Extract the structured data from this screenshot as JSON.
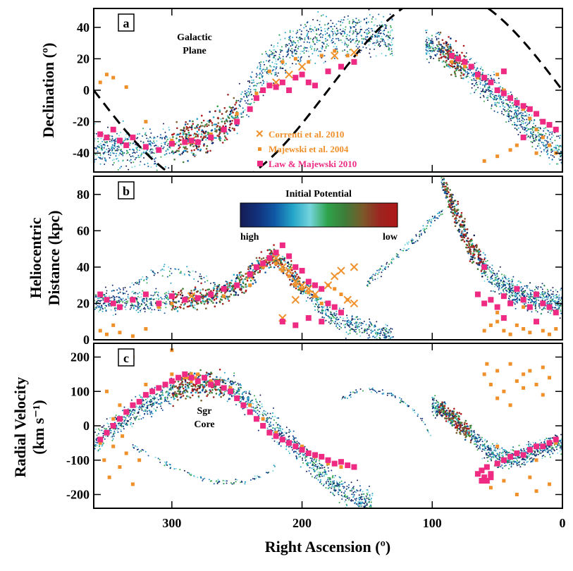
{
  "figure": {
    "xlabel": "Right Ascension (º)",
    "x_ticks": [
      "300",
      "200",
      "100",
      "0"
    ]
  },
  "chart_data": [
    {
      "id": "a",
      "type": "scatter",
      "panel_label": "a",
      "ylabel": "Declination (º)",
      "xlim": [
        360,
        0
      ],
      "ylim": [
        -52,
        52
      ],
      "y_ticks": [
        "40",
        "20",
        "0",
        "-20",
        "-40"
      ],
      "annotations": [
        "Galactic",
        "Plane"
      ],
      "legend": [
        "Correnti et al. 2010",
        "Majewski et al. 2004",
        "Law & Majewski 2010"
      ],
      "series": [
        {
          "name": "Correnti et al. 2010",
          "marker": "x",
          "color": "#f0902a",
          "x": [
            285,
            220,
            210,
            200,
            175,
            160
          ],
          "y": [
            -32,
            5,
            10,
            15,
            22,
            24
          ]
        },
        {
          "name": "Majewski et al. 2004",
          "marker": "dot",
          "color": "#f0902a",
          "x": [
            355,
            350,
            345,
            335,
            320,
            300,
            285,
            270,
            250,
            235,
            225,
            215,
            205,
            195,
            185,
            175,
            165,
            85,
            75,
            65,
            55,
            50,
            45,
            40,
            35,
            30,
            25,
            20,
            15,
            10,
            5,
            50,
            40,
            35,
            20,
            60
          ],
          "y": [
            5,
            10,
            8,
            2,
            -20,
            -32,
            -33,
            -28,
            -15,
            -2,
            12,
            18,
            20,
            18,
            22,
            25,
            22,
            18,
            15,
            8,
            5,
            10,
            0,
            -5,
            -8,
            -12,
            -18,
            -25,
            -30,
            -35,
            -40,
            -42,
            -38,
            -35,
            -40,
            -45
          ]
        },
        {
          "name": "Law & Majewski 2010",
          "marker": "square",
          "color": "#ee2a83",
          "x": [
            355,
            350,
            345,
            340,
            335,
            330,
            320,
            310,
            300,
            290,
            285,
            280,
            270,
            260,
            250,
            240,
            235,
            230,
            225,
            220,
            215,
            210,
            205,
            200,
            195,
            190,
            180,
            170,
            160,
            85,
            80,
            75,
            70,
            65,
            60,
            55,
            50,
            45,
            40,
            35,
            30,
            25,
            20,
            15,
            10,
            5,
            45,
            30
          ],
          "y": [
            -28,
            -30,
            -25,
            -32,
            -35,
            -30,
            -36,
            -38,
            -34,
            -33,
            -32,
            -33,
            -30,
            -25,
            -20,
            -12,
            -5,
            0,
            3,
            2,
            5,
            0,
            8,
            10,
            5,
            3,
            12,
            15,
            18,
            22,
            20,
            18,
            15,
            10,
            8,
            5,
            0,
            -2,
            -5,
            -8,
            -10,
            -12,
            -15,
            -20,
            -22,
            -25,
            12,
            -30
          ]
        }
      ]
    },
    {
      "id": "b",
      "type": "scatter",
      "panel_label": "b",
      "ylabel": [
        "Heliocentric",
        "Distance (kpc)"
      ],
      "xlim": [
        360,
        0
      ],
      "ylim": [
        0,
        90
      ],
      "y_ticks": [
        "80",
        "60",
        "40",
        "20",
        "0"
      ],
      "colorbar": {
        "title": "Initial Potential",
        "left": "high",
        "right": "low",
        "colors": [
          "#141c55",
          "#12317c",
          "#0f5aa6",
          "#24a4c8",
          "#74d4dc",
          "#2ea34a",
          "#3e7c3a",
          "#7a5a2a",
          "#9c2420",
          "#b01818"
        ]
      },
      "series": [
        {
          "name": "Correnti et al. 2010",
          "marker": "x",
          "color": "#f0902a",
          "x": [
            285,
            240,
            230,
            220,
            215,
            210,
            205,
            200,
            195,
            190,
            180,
            175,
            170,
            165,
            160,
            160,
            215,
            205
          ],
          "y": [
            24,
            35,
            42,
            45,
            40,
            38,
            32,
            30,
            28,
            25,
            30,
            35,
            38,
            22,
            40,
            20,
            12,
            22
          ]
        },
        {
          "name": "Majewski et al. 2004",
          "marker": "dot",
          "color": "#f0902a",
          "x": [
            355,
            350,
            345,
            340,
            330,
            320,
            310,
            300,
            290,
            260,
            240,
            230,
            225,
            220,
            215,
            210,
            205,
            200,
            195,
            190,
            185,
            180,
            175,
            170,
            165,
            60,
            55,
            50,
            45,
            40,
            35,
            30,
            25,
            20,
            15,
            10,
            5,
            50,
            30
          ],
          "y": [
            5,
            3,
            8,
            4,
            2,
            6,
            18,
            20,
            22,
            24,
            30,
            40,
            44,
            42,
            38,
            35,
            30,
            28,
            26,
            24,
            20,
            30,
            28,
            25,
            22,
            5,
            8,
            10,
            5,
            3,
            8,
            6,
            4,
            10,
            5,
            3,
            6,
            15,
            18
          ]
        },
        {
          "name": "Law & Majewski 2010",
          "marker": "square",
          "color": "#ee2a83",
          "x": [
            355,
            350,
            345,
            340,
            330,
            320,
            310,
            300,
            290,
            280,
            270,
            260,
            250,
            240,
            235,
            230,
            225,
            220,
            215,
            210,
            205,
            200,
            195,
            190,
            185,
            180,
            175,
            170,
            215,
            205,
            195,
            185,
            65,
            60,
            55,
            50,
            45,
            40,
            35,
            30,
            25,
            20,
            15,
            10,
            5,
            60,
            45,
            20
          ],
          "y": [
            25,
            22,
            20,
            18,
            22,
            25,
            20,
            24,
            22,
            23,
            25,
            28,
            30,
            36,
            40,
            42,
            45,
            48,
            52,
            46,
            40,
            38,
            32,
            30,
            28,
            20,
            18,
            15,
            10,
            8,
            12,
            10,
            25,
            20,
            22,
            18,
            24,
            20,
            28,
            22,
            18,
            25,
            20,
            18,
            15,
            40,
            12,
            10
          ]
        }
      ]
    },
    {
      "id": "c",
      "type": "scatter",
      "panel_label": "c",
      "ylabel": [
        "Radial Velocity",
        "(km s⁻¹)"
      ],
      "xlim": [
        360,
        0
      ],
      "ylim": [
        -240,
        240
      ],
      "y_ticks": [
        "200",
        "100",
        "0",
        "-100",
        "-200"
      ],
      "annotations": [
        "Sgr",
        "Core"
      ],
      "series": [
        {
          "name": "Correnti et al. 2010",
          "marker": "x",
          "color": "#f0902a",
          "x": [
            285
          ],
          "y": [
            140
          ]
        },
        {
          "name": "Majewski et al. 2004",
          "marker": "dot",
          "color": "#f0902a",
          "x": [
            355,
            352,
            348,
            345,
            340,
            338,
            335,
            330,
            325,
            350,
            345,
            340,
            320,
            310,
            300,
            290,
            280,
            270,
            255,
            240,
            230,
            220,
            200,
            190,
            180,
            170,
            60,
            58,
            55,
            50,
            45,
            40,
            35,
            30,
            25,
            20,
            15,
            10,
            55,
            45,
            35,
            25,
            20,
            10,
            50,
            40,
            30,
            15,
            50,
            35,
            20,
            5,
            300,
            330
          ],
          "y": [
            -50,
            -100,
            -150,
            -60,
            -120,
            -30,
            -80,
            -170,
            -100,
            100,
            20,
            60,
            120,
            110,
            150,
            140,
            150,
            130,
            110,
            60,
            20,
            -20,
            -60,
            -90,
            -110,
            -120,
            150,
            180,
            120,
            160,
            100,
            180,
            130,
            150,
            160,
            120,
            170,
            140,
            -180,
            -160,
            -200,
            -150,
            -190,
            -170,
            80,
            60,
            110,
            90,
            -60,
            -80,
            -100,
            -50,
            220,
            200
          ]
        },
        {
          "name": "Law & Majewski 2010",
          "marker": "square",
          "color": "#ee2a83",
          "x": [
            355,
            350,
            345,
            340,
            335,
            330,
            325,
            320,
            315,
            310,
            305,
            300,
            295,
            290,
            285,
            280,
            275,
            270,
            265,
            260,
            255,
            250,
            245,
            240,
            235,
            230,
            225,
            220,
            215,
            210,
            205,
            200,
            195,
            190,
            185,
            180,
            175,
            170,
            165,
            160,
            65,
            62,
            60,
            58,
            55,
            50,
            45,
            40,
            35,
            30,
            25,
            20,
            15,
            10,
            5,
            62,
            58,
            55
          ],
          "y": [
            -40,
            -20,
            0,
            20,
            40,
            60,
            70,
            90,
            100,
            110,
            120,
            130,
            140,
            150,
            140,
            130,
            140,
            120,
            125,
            110,
            100,
            80,
            60,
            40,
            20,
            0,
            -20,
            -30,
            -40,
            -50,
            -60,
            -70,
            -80,
            -85,
            -90,
            -100,
            -110,
            -105,
            -115,
            -120,
            -140,
            -130,
            -150,
            -120,
            -140,
            -110,
            -100,
            -90,
            -80,
            -85,
            -70,
            -60,
            -60,
            -50,
            -40,
            -160,
            -160,
            -150
          ]
        }
      ]
    }
  ]
}
